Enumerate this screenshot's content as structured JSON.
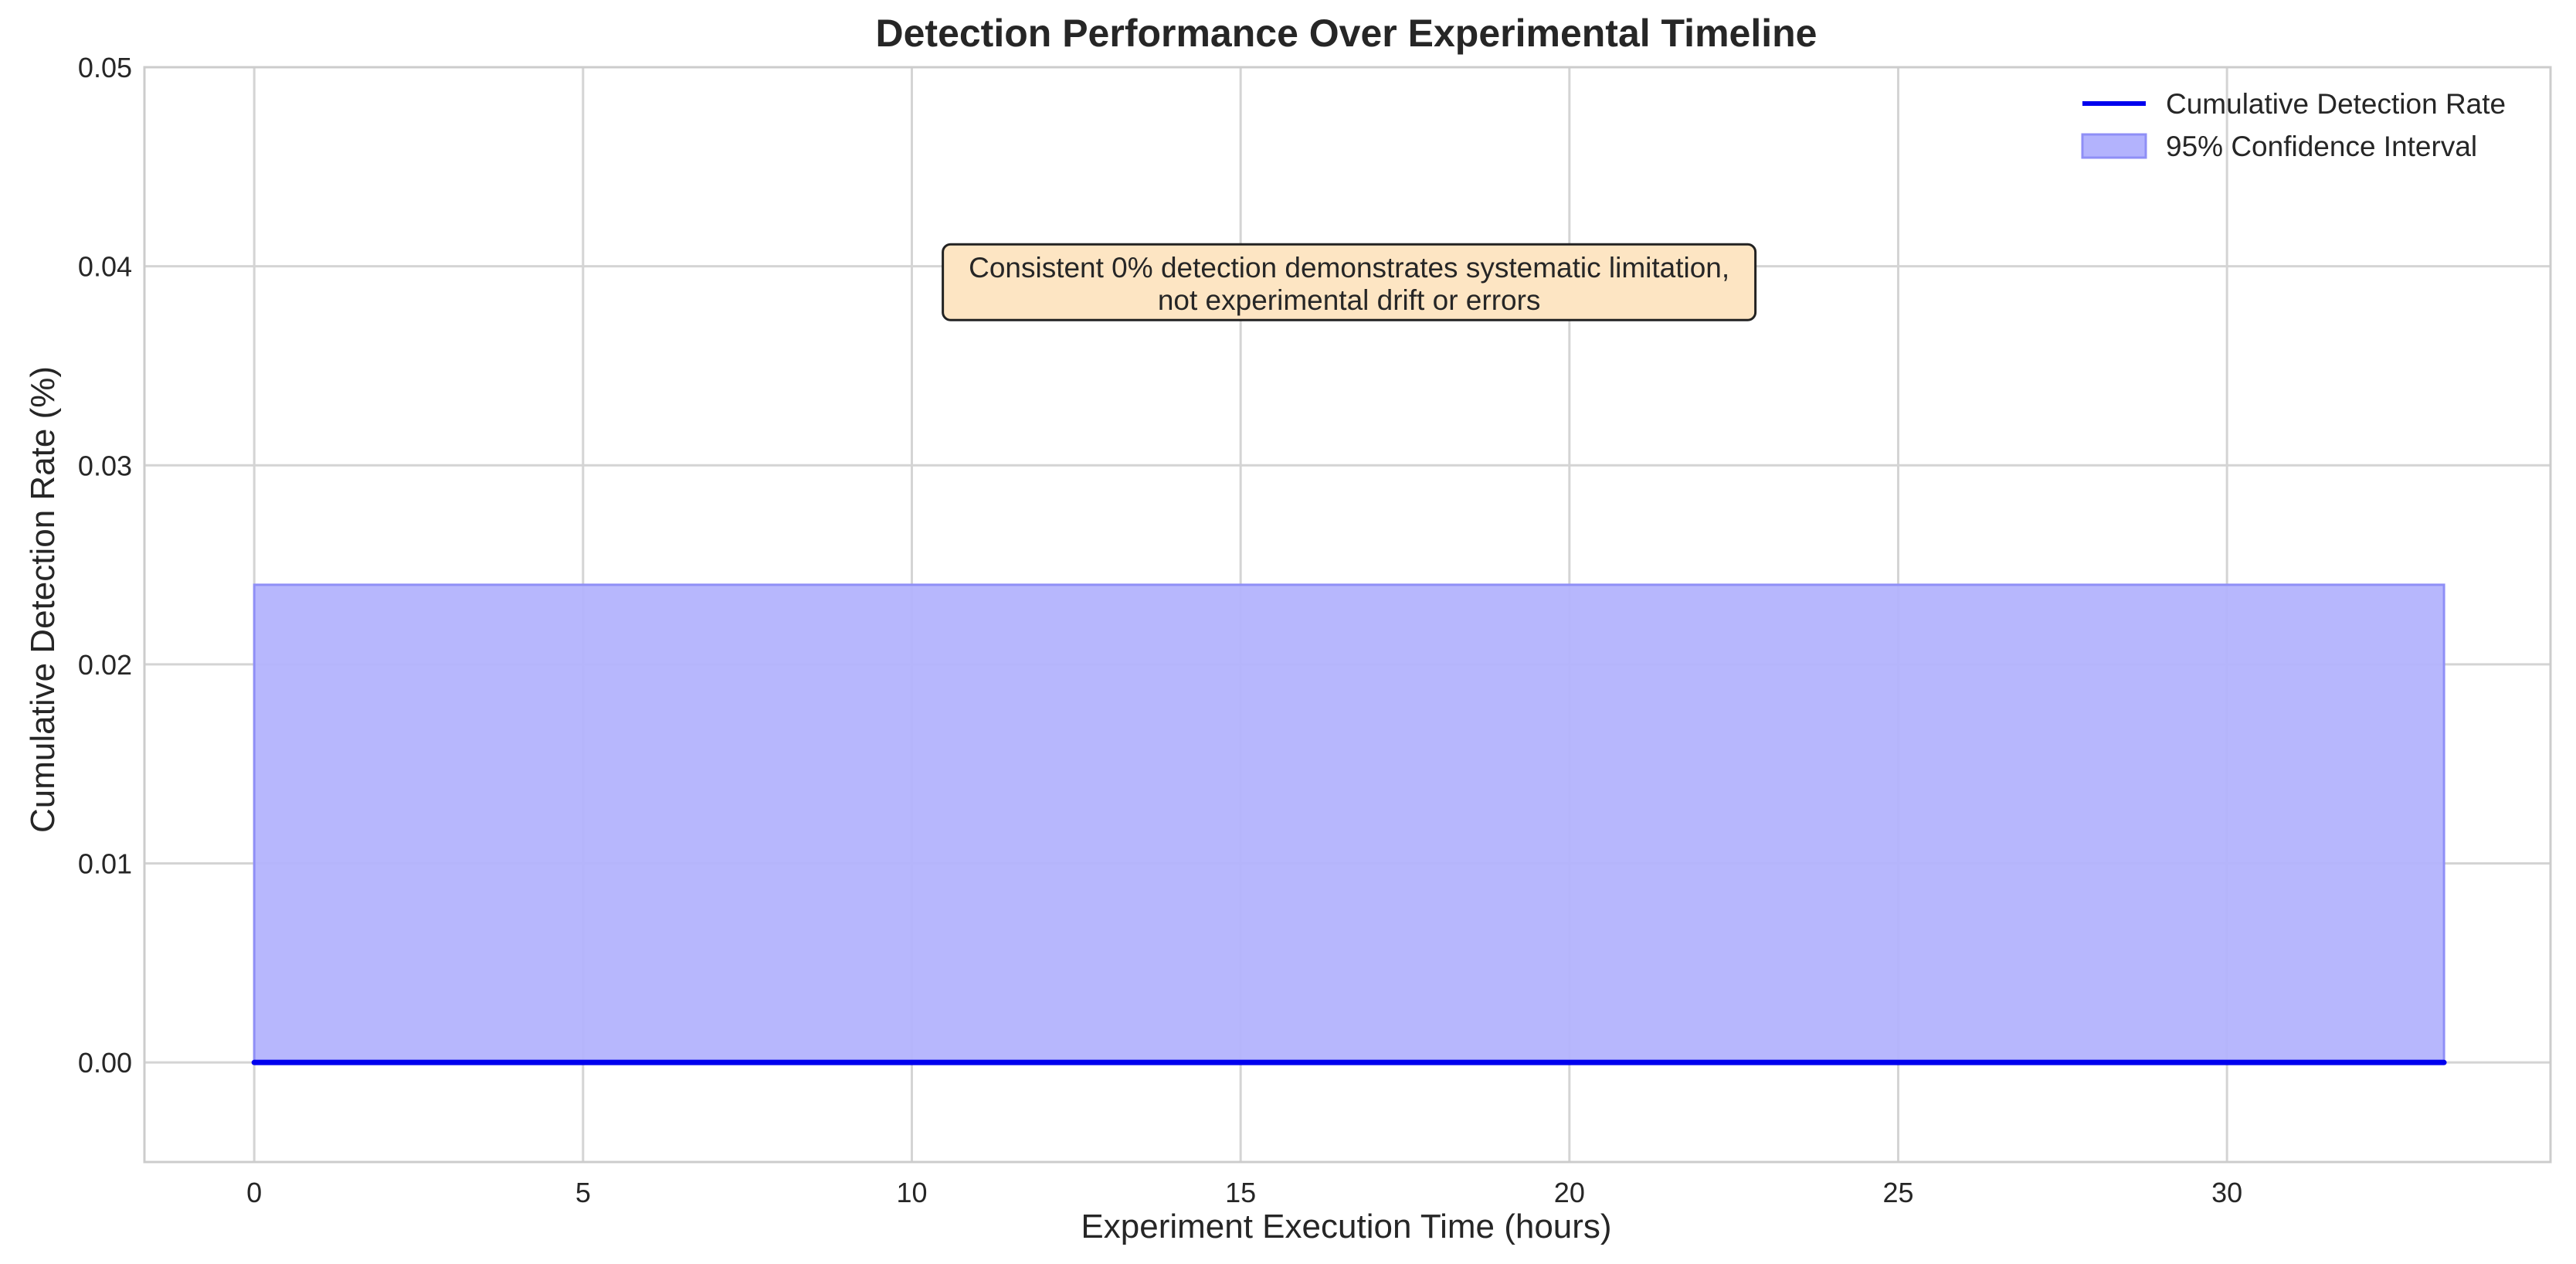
{
  "chart_data": {
    "type": "line",
    "title": "Detection Performance Over Experimental Timeline",
    "xlabel": "Experiment Execution Time (hours)",
    "ylabel": "Cumulative Detection Rate (%)",
    "xlim": [
      -1.67,
      34.92
    ],
    "ylim": [
      -0.005,
      0.05
    ],
    "x_ticks": [
      0,
      5,
      10,
      15,
      20,
      25,
      30
    ],
    "y_ticks": [
      "0.00",
      "0.01",
      "0.02",
      "0.03",
      "0.04",
      "0.05"
    ],
    "grid": true,
    "legend_position": "top-right",
    "series": [
      {
        "name": "Cumulative Detection Rate",
        "color": "#0000ee",
        "x": [
          0,
          33.3
        ],
        "y": [
          0,
          0
        ]
      }
    ],
    "confidence_band": {
      "name": "95% Confidence Interval",
      "color": "#b3b3fd",
      "edge_color": "#8f8ff6",
      "x": [
        0,
        33.3
      ],
      "lower": [
        0,
        0
      ],
      "upper": [
        0.024,
        0.024
      ]
    },
    "annotation": {
      "lines": [
        "Consistent 0% detection demonstrates systematic limitation,",
        "not experimental drift or errors"
      ],
      "background": "#fde5c3",
      "x": 16.65,
      "y": 0.0392
    }
  }
}
